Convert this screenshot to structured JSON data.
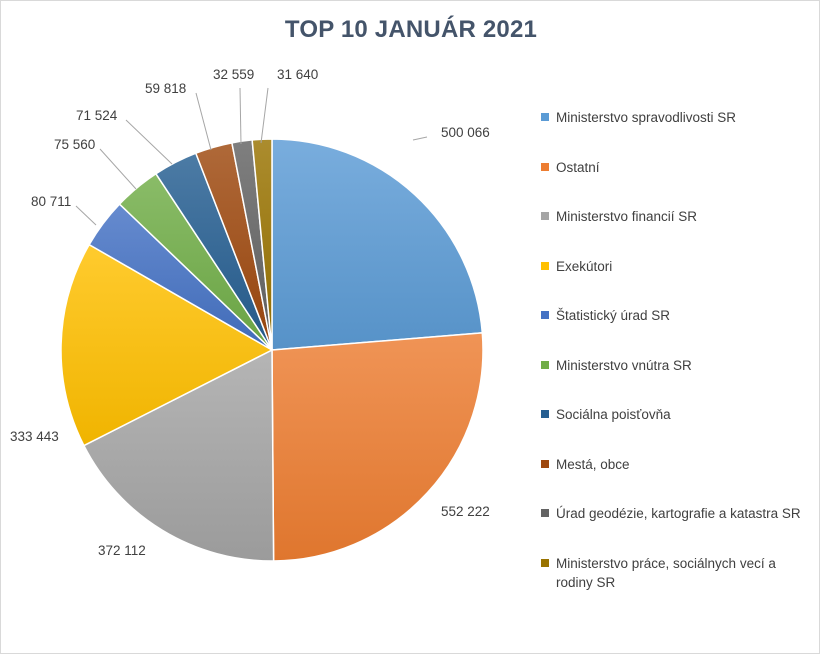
{
  "chart_data": {
    "type": "pie",
    "title": "TOP 10 JANUÁR 2021",
    "legend_position": "right",
    "slices": [
      {
        "label": "Ministerstvo spravodlivosti SR",
        "value": 500066,
        "value_label": "500 066",
        "color": "#5b9bd5"
      },
      {
        "label": "Ostatní",
        "value": 552222,
        "value_label": "552 222",
        "color": "#ed7d31"
      },
      {
        "label": "Ministerstvo financií SR",
        "value": 372112,
        "value_label": "372 112",
        "color": "#a5a5a5"
      },
      {
        "label": "Exekútori",
        "value": 333443,
        "value_label": "333 443",
        "color": "#ffc000"
      },
      {
        "label": "Štatistický úrad SR",
        "value": 80711,
        "value_label": "80 711",
        "color": "#4472c4"
      },
      {
        "label": "Ministerstvo vnútra SR",
        "value": 75560,
        "value_label": "75 560",
        "color": "#70ad47"
      },
      {
        "label": "Sociálna poisťovňa",
        "value": 71524,
        "value_label": "71 524",
        "color": "#255e91"
      },
      {
        "label": "Mestá, obce",
        "value": 59818,
        "value_label": "59 818",
        "color": "#9e480e"
      },
      {
        "label": "Úrad geodézie, kartografie a katastra SR",
        "value": 32559,
        "value_label": "32 559",
        "color": "#636363"
      },
      {
        "label": "Ministerstvo práce, sociálnych vecí a rodiny SR",
        "value": 31640,
        "value_label": "31 640",
        "color": "#997300"
      }
    ]
  }
}
